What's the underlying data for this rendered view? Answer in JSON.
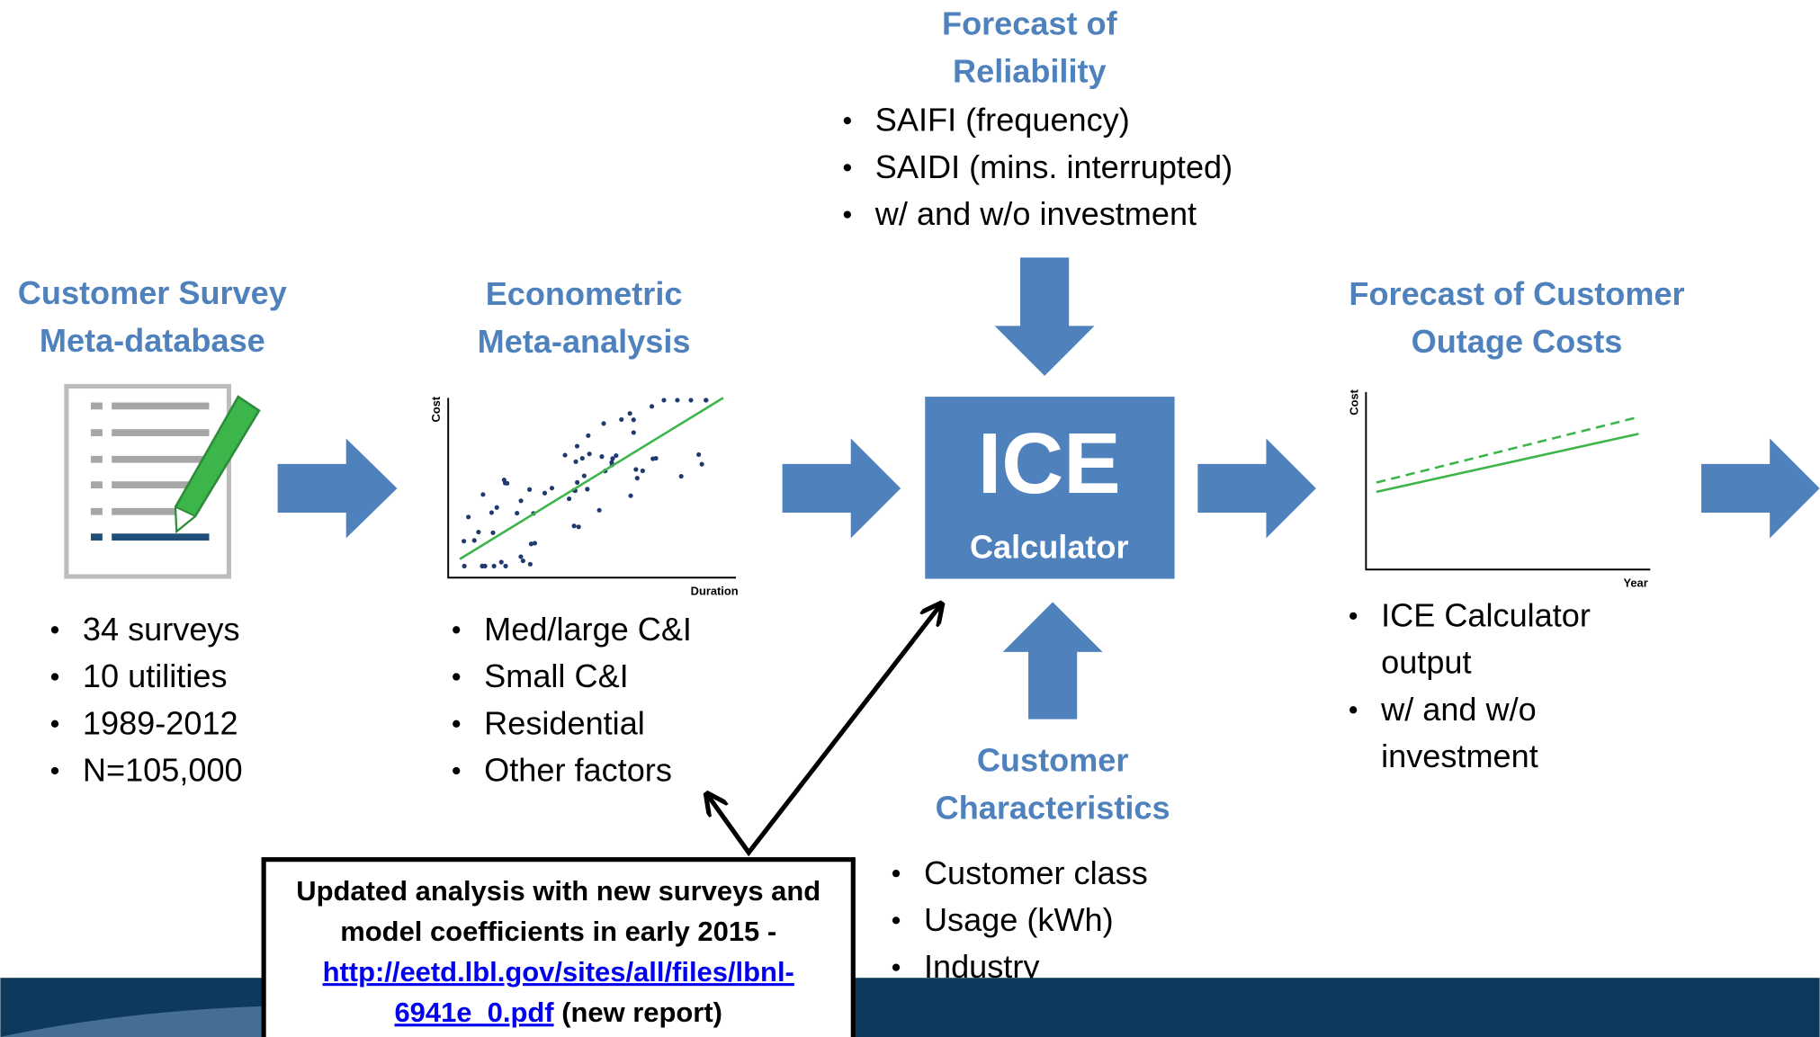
{
  "survey": {
    "title": [
      "Customer Survey",
      "Meta-database"
    ],
    "bullets": [
      [
        "34 surveys"
      ],
      [
        "10 utilities"
      ],
      [
        "1989-2012"
      ],
      [
        "N=105,000"
      ]
    ]
  },
  "econometric": {
    "title": [
      "Econometric",
      "Meta-analysis"
    ],
    "bullets": [
      [
        "Med/large C&I"
      ],
      [
        "Small C&I"
      ],
      [
        "Residential"
      ],
      [
        "Other factors"
      ]
    ],
    "y_axis": "Cost",
    "x_axis": "Duration"
  },
  "reliability": {
    "title": [
      "Forecast of",
      "Reliability"
    ],
    "bullets": [
      [
        "SAIFI (frequency)"
      ],
      [
        "SAIDI (mins. interrupted)"
      ],
      [
        "w/ and w/o investment"
      ]
    ]
  },
  "ice": {
    "title": "ICE",
    "subtitle": "Calculator"
  },
  "forecast": {
    "title": [
      "Forecast of Customer",
      "Outage Costs"
    ],
    "bullets": [
      [
        "ICE Calculator",
        "output"
      ],
      [
        "w/ and w/o",
        "investment"
      ]
    ],
    "y_axis": "Cost",
    "x_axis": "Year"
  },
  "customer": {
    "title": [
      "Customer",
      "Characteristics"
    ],
    "bullets": [
      [
        "Customer class"
      ],
      [
        "Usage (kWh)"
      ],
      [
        "Industry"
      ]
    ]
  },
  "note": {
    "lines": [
      "Updated analysis with new surveys and",
      "model coefficients in early 2015 -"
    ],
    "link": [
      "http://eetd.lbl.gov/sites/all/files/lbnl-",
      "6941e_0.pdf"
    ],
    "suffix": "(new report)"
  }
}
